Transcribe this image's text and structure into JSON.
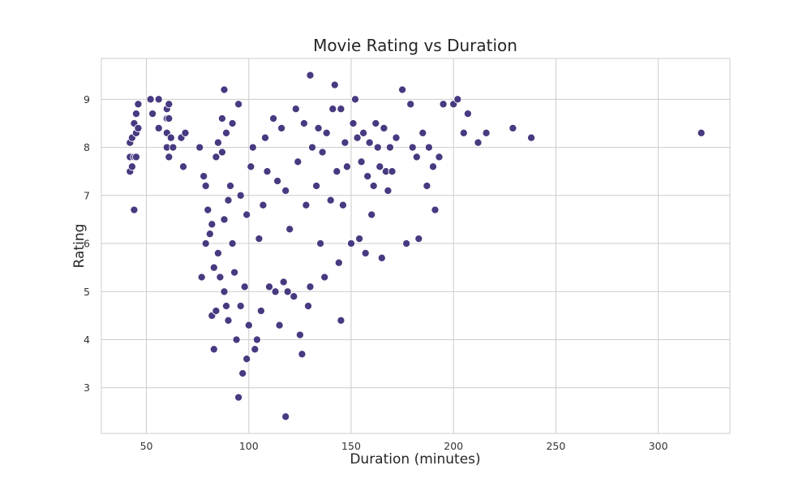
{
  "chart_data": {
    "type": "scatter",
    "title": "Movie Rating vs Duration",
    "xlabel": "Duration (minutes)",
    "ylabel": "Rating",
    "xlim": [
      28,
      335
    ],
    "ylim": [
      2.05,
      9.85
    ],
    "xticks": [
      50,
      100,
      150,
      200,
      250,
      300
    ],
    "yticks": [
      3,
      4,
      5,
      6,
      7,
      8,
      9
    ],
    "grid": true,
    "point_color": "#483980",
    "series": [
      {
        "x": [
          42,
          42,
          42,
          43,
          43,
          44,
          44,
          44,
          45,
          45,
          45,
          46,
          46,
          52,
          53,
          56,
          56,
          60,
          60,
          60,
          60,
          61,
          61,
          61,
          62,
          63,
          67,
          68,
          69,
          76,
          77,
          78,
          79,
          79,
          80,
          81,
          82,
          82,
          83,
          83,
          84,
          84,
          85,
          85,
          86,
          87,
          87,
          88,
          88,
          88,
          89,
          89,
          90,
          90,
          91,
          92,
          92,
          93,
          94,
          95,
          95,
          96,
          96,
          97,
          98,
          99,
          99,
          100,
          101,
          102,
          103,
          104,
          105,
          106,
          107,
          108,
          109,
          110,
          112,
          113,
          114,
          115,
          116,
          117,
          118,
          118,
          119,
          120,
          122,
          123,
          124,
          125,
          126,
          127,
          128,
          129,
          130,
          130,
          131,
          133,
          134,
          135,
          136,
          137,
          138,
          140,
          141,
          142,
          143,
          144,
          145,
          145,
          146,
          147,
          148,
          150,
          151,
          152,
          153,
          154,
          155,
          156,
          157,
          158,
          159,
          160,
          161,
          162,
          163,
          164,
          165,
          166,
          167,
          168,
          169,
          170,
          172,
          175,
          177,
          179,
          180,
          182,
          183,
          185,
          187,
          188,
          190,
          191,
          193,
          195,
          200,
          202,
          205,
          207,
          212,
          216,
          229,
          238,
          321
        ],
        "y": [
          7.5,
          7.8,
          8.1,
          7.6,
          8.2,
          8.5,
          7.8,
          6.7,
          8.7,
          8.3,
          7.8,
          8.9,
          8.4,
          9.0,
          8.7,
          9.0,
          8.4,
          8.6,
          8.8,
          8.0,
          8.3,
          8.6,
          8.9,
          7.8,
          8.2,
          8.0,
          8.2,
          7.6,
          8.3,
          8.0,
          5.3,
          7.4,
          7.2,
          6.0,
          6.7,
          6.2,
          4.5,
          6.4,
          5.5,
          3.8,
          7.8,
          4.6,
          5.8,
          8.1,
          5.3,
          8.6,
          7.9,
          9.2,
          6.5,
          5.0,
          8.3,
          4.7,
          6.9,
          4.4,
          7.2,
          8.5,
          6.0,
          5.4,
          4.0,
          2.8,
          8.9,
          4.7,
          7.0,
          3.3,
          5.1,
          3.6,
          6.6,
          4.3,
          7.6,
          8.0,
          3.8,
          4.0,
          6.1,
          4.6,
          6.8,
          8.2,
          7.5,
          5.1,
          8.6,
          5.0,
          7.3,
          4.3,
          8.4,
          5.2,
          2.4,
          7.1,
          5.0,
          6.3,
          4.9,
          8.8,
          7.7,
          4.1,
          3.7,
          8.5,
          6.8,
          4.7,
          9.5,
          5.1,
          8.0,
          7.2,
          8.4,
          6.0,
          7.9,
          5.3,
          8.3,
          6.9,
          8.8,
          9.3,
          7.5,
          5.6,
          8.8,
          4.4,
          6.8,
          8.1,
          7.6,
          6.0,
          8.5,
          9.0,
          8.2,
          6.1,
          7.7,
          8.3,
          5.8,
          7.4,
          8.1,
          6.6,
          7.2,
          8.5,
          8.0,
          7.6,
          5.7,
          8.4,
          7.5,
          7.1,
          8.0,
          7.5,
          8.2,
          9.2,
          6.0,
          8.9,
          8.0,
          7.8,
          6.1,
          8.3,
          7.2,
          8.0,
          7.6,
          6.7,
          7.8,
          8.9,
          8.9,
          9.0,
          8.3,
          8.7,
          8.1,
          8.3,
          8.4,
          8.2,
          8.3
        ]
      }
    ]
  }
}
